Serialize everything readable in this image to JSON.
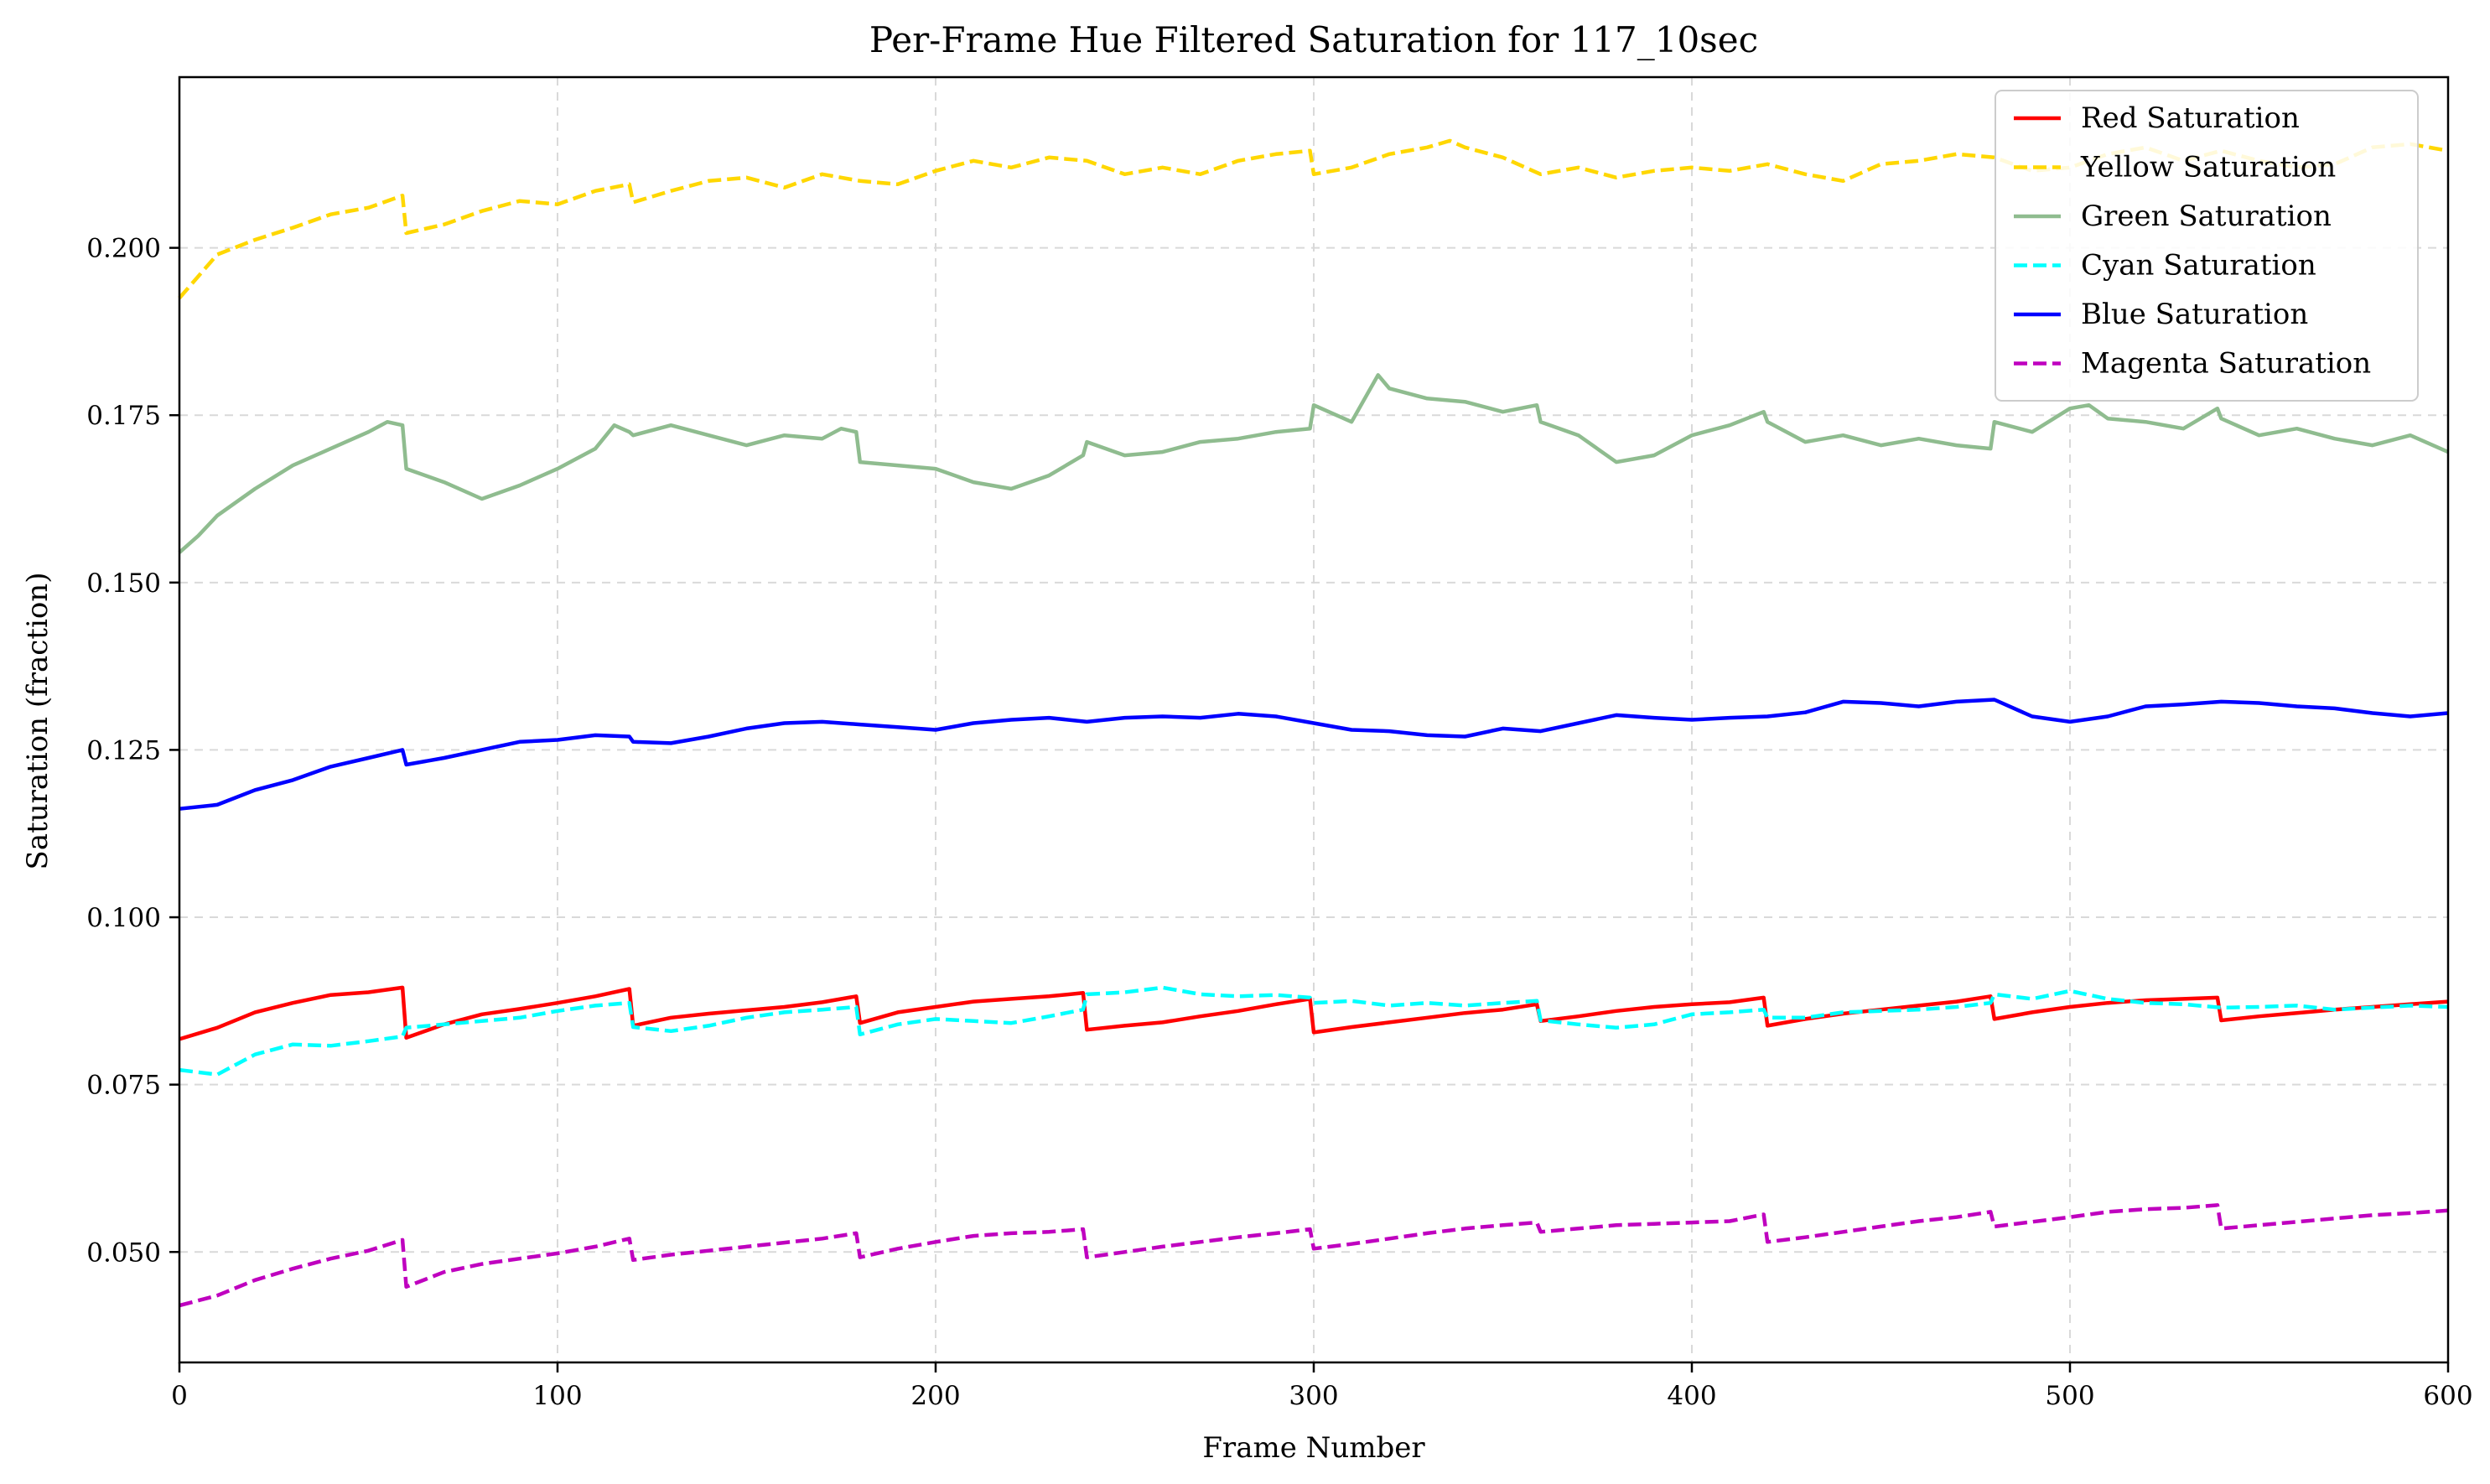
{
  "chart_data": {
    "type": "line",
    "title": "Per-Frame Hue Filtered Saturation for 117_10sec",
    "xlabel": "Frame Number",
    "ylabel": "Saturation (fraction)",
    "xlim": [
      0,
      600
    ],
    "ylim": [
      0.0335,
      0.2255
    ],
    "xticks": [
      0,
      100,
      200,
      300,
      400,
      500,
      600
    ],
    "xtick_labels": [
      "0",
      "100",
      "200",
      "300",
      "400",
      "500",
      "600"
    ],
    "yticks": [
      0.05,
      0.075,
      0.1,
      0.125,
      0.15,
      0.175,
      0.2
    ],
    "ytick_labels": [
      "0.050",
      "0.075",
      "0.100",
      "0.125",
      "0.150",
      "0.175",
      "0.200"
    ],
    "grid": true,
    "legend_position": "top-right",
    "series": [
      {
        "name": "Red Saturation",
        "color": "#ff0000",
        "style": "solid",
        "x": [
          0,
          10,
          20,
          30,
          40,
          50,
          59,
          60,
          70,
          80,
          90,
          100,
          110,
          119,
          120,
          130,
          140,
          150,
          160,
          170,
          179,
          180,
          190,
          200,
          210,
          220,
          230,
          239,
          240,
          250,
          260,
          270,
          280,
          290,
          299,
          300,
          310,
          320,
          330,
          340,
          350,
          359,
          360,
          370,
          380,
          390,
          400,
          410,
          419,
          420,
          430,
          440,
          450,
          460,
          470,
          479,
          480,
          490,
          500,
          510,
          520,
          530,
          539,
          540,
          550,
          560,
          570,
          580,
          590,
          600
        ],
        "y": [
          0.0818,
          0.0835,
          0.0858,
          0.0872,
          0.0884,
          0.0888,
          0.0895,
          0.082,
          0.084,
          0.0855,
          0.0863,
          0.0872,
          0.0882,
          0.0893,
          0.0838,
          0.085,
          0.0856,
          0.0861,
          0.0866,
          0.0873,
          0.0882,
          0.0842,
          0.0858,
          0.0866,
          0.0874,
          0.0878,
          0.0882,
          0.0887,
          0.0832,
          0.0838,
          0.0843,
          0.0852,
          0.086,
          0.087,
          0.0878,
          0.0828,
          0.0836,
          0.0843,
          0.085,
          0.0857,
          0.0862,
          0.087,
          0.0845,
          0.0852,
          0.086,
          0.0866,
          0.087,
          0.0873,
          0.088,
          0.0838,
          0.0848,
          0.0856,
          0.0862,
          0.0868,
          0.0874,
          0.0882,
          0.0848,
          0.0858,
          0.0866,
          0.0872,
          0.0876,
          0.0878,
          0.088,
          0.0846,
          0.0852,
          0.0857,
          0.0862,
          0.0866,
          0.087,
          0.0874
        ]
      },
      {
        "name": "Yellow Saturation",
        "color": "#ffd700",
        "style": "dashed",
        "x": [
          0,
          10,
          20,
          30,
          40,
          50,
          59,
          60,
          70,
          80,
          90,
          100,
          110,
          119,
          120,
          130,
          140,
          150,
          160,
          170,
          180,
          190,
          200,
          210,
          220,
          230,
          240,
          250,
          260,
          270,
          280,
          290,
          299,
          300,
          310,
          320,
          330,
          336,
          340,
          350,
          360,
          370,
          380,
          390,
          400,
          410,
          420,
          430,
          440,
          450,
          460,
          470,
          480,
          490,
          500,
          510,
          520,
          530,
          540,
          550,
          560,
          570,
          580,
          590,
          600
        ],
        "y": [
          0.1925,
          0.199,
          0.2012,
          0.203,
          0.205,
          0.206,
          0.2078,
          0.2022,
          0.2035,
          0.2055,
          0.207,
          0.2065,
          0.2085,
          0.2095,
          0.2068,
          0.2085,
          0.21,
          0.2105,
          0.209,
          0.211,
          0.21,
          0.2095,
          0.2115,
          0.213,
          0.212,
          0.2135,
          0.213,
          0.211,
          0.212,
          0.211,
          0.213,
          0.214,
          0.2145,
          0.211,
          0.212,
          0.214,
          0.215,
          0.216,
          0.215,
          0.2135,
          0.211,
          0.212,
          0.2105,
          0.2115,
          0.212,
          0.2115,
          0.2125,
          0.211,
          0.21,
          0.2125,
          0.213,
          0.214,
          0.2135,
          0.2115,
          0.212,
          0.214,
          0.215,
          0.213,
          0.2145,
          0.213,
          0.212,
          0.2125,
          0.215,
          0.2155,
          0.2145
        ]
      },
      {
        "name": "Green Saturation",
        "color": "#8fbc8f",
        "style": "solid",
        "x": [
          0,
          5,
          10,
          20,
          30,
          40,
          50,
          55,
          59,
          60,
          70,
          80,
          90,
          100,
          110,
          115,
          119,
          120,
          130,
          140,
          150,
          160,
          170,
          175,
          179,
          180,
          190,
          200,
          210,
          220,
          230,
          239,
          240,
          250,
          260,
          270,
          280,
          290,
          299,
          300,
          310,
          317,
          320,
          330,
          340,
          350,
          359,
          360,
          370,
          380,
          390,
          400,
          410,
          419,
          420,
          430,
          440,
          450,
          460,
          470,
          479,
          480,
          490,
          500,
          505,
          510,
          520,
          530,
          539,
          540,
          550,
          560,
          570,
          580,
          590,
          600
        ],
        "y": [
          0.1545,
          0.157,
          0.16,
          0.164,
          0.1675,
          0.17,
          0.1725,
          0.174,
          0.1735,
          0.167,
          0.165,
          0.1625,
          0.1645,
          0.167,
          0.17,
          0.1735,
          0.1725,
          0.172,
          0.1735,
          0.172,
          0.1705,
          0.172,
          0.1715,
          0.173,
          0.1725,
          0.168,
          0.1675,
          0.167,
          0.165,
          0.164,
          0.166,
          0.169,
          0.171,
          0.169,
          0.1695,
          0.171,
          0.1715,
          0.1725,
          0.173,
          0.1765,
          0.174,
          0.181,
          0.179,
          0.1775,
          0.177,
          0.1755,
          0.1765,
          0.174,
          0.172,
          0.168,
          0.169,
          0.172,
          0.1735,
          0.1755,
          0.174,
          0.171,
          0.172,
          0.1705,
          0.1715,
          0.1705,
          0.17,
          0.174,
          0.1725,
          0.176,
          0.1765,
          0.1745,
          0.174,
          0.173,
          0.176,
          0.1745,
          0.172,
          0.173,
          0.1715,
          0.1705,
          0.172,
          0.1695
        ]
      },
      {
        "name": "Cyan Saturation",
        "color": "#00ffff",
        "style": "dashed",
        "x": [
          0,
          10,
          20,
          30,
          40,
          50,
          59,
          60,
          70,
          80,
          90,
          100,
          110,
          119,
          120,
          130,
          140,
          150,
          160,
          170,
          179,
          180,
          190,
          200,
          210,
          220,
          230,
          239,
          240,
          250,
          260,
          270,
          280,
          290,
          299,
          300,
          310,
          320,
          330,
          340,
          350,
          359,
          360,
          370,
          380,
          390,
          400,
          410,
          419,
          420,
          430,
          440,
          450,
          460,
          470,
          479,
          480,
          490,
          500,
          510,
          520,
          530,
          540,
          550,
          560,
          570,
          580,
          590,
          600
        ],
        "y": [
          0.0772,
          0.0765,
          0.0795,
          0.081,
          0.0808,
          0.0815,
          0.0822,
          0.0835,
          0.084,
          0.0845,
          0.085,
          0.086,
          0.0868,
          0.0872,
          0.0836,
          0.083,
          0.0838,
          0.085,
          0.0858,
          0.0862,
          0.0866,
          0.0825,
          0.084,
          0.0848,
          0.0845,
          0.0842,
          0.0852,
          0.0862,
          0.0885,
          0.0888,
          0.0895,
          0.0885,
          0.0882,
          0.0884,
          0.088,
          0.0872,
          0.0875,
          0.0868,
          0.0872,
          0.0868,
          0.0872,
          0.0875,
          0.0846,
          0.084,
          0.0835,
          0.084,
          0.0855,
          0.0858,
          0.0862,
          0.085,
          0.085,
          0.0858,
          0.086,
          0.0862,
          0.0866,
          0.0872,
          0.0885,
          0.0878,
          0.089,
          0.0878,
          0.0872,
          0.087,
          0.0865,
          0.0866,
          0.0868,
          0.0862,
          0.0865,
          0.0868,
          0.0866
        ]
      },
      {
        "name": "Blue Saturation",
        "color": "#0000ff",
        "style": "solid",
        "x": [
          0,
          10,
          20,
          30,
          40,
          50,
          59,
          60,
          70,
          80,
          90,
          100,
          110,
          119,
          120,
          130,
          140,
          150,
          160,
          170,
          180,
          190,
          200,
          210,
          220,
          230,
          240,
          250,
          260,
          270,
          280,
          290,
          300,
          310,
          320,
          330,
          340,
          350,
          360,
          370,
          380,
          390,
          400,
          410,
          420,
          430,
          440,
          450,
          460,
          470,
          480,
          490,
          500,
          510,
          520,
          530,
          540,
          550,
          560,
          570,
          580,
          590,
          600
        ],
        "y": [
          0.1162,
          0.1168,
          0.119,
          0.1205,
          0.1225,
          0.1238,
          0.125,
          0.1228,
          0.1238,
          0.125,
          0.1262,
          0.1265,
          0.1272,
          0.127,
          0.1262,
          0.126,
          0.127,
          0.1282,
          0.129,
          0.1292,
          0.1288,
          0.1284,
          0.128,
          0.129,
          0.1295,
          0.1298,
          0.1292,
          0.1298,
          0.13,
          0.1298,
          0.1304,
          0.13,
          0.129,
          0.128,
          0.1278,
          0.1272,
          0.127,
          0.1282,
          0.1278,
          0.129,
          0.1302,
          0.1298,
          0.1295,
          0.1298,
          0.13,
          0.1306,
          0.1322,
          0.132,
          0.1315,
          0.1322,
          0.1325,
          0.13,
          0.1292,
          0.13,
          0.1315,
          0.1318,
          0.1322,
          0.132,
          0.1315,
          0.1312,
          0.1305,
          0.13,
          0.1305
        ]
      },
      {
        "name": "Magenta Saturation",
        "color": "#bf00bf",
        "style": "dashed",
        "x": [
          0,
          10,
          20,
          30,
          40,
          50,
          59,
          60,
          70,
          80,
          90,
          100,
          110,
          119,
          120,
          130,
          140,
          150,
          160,
          170,
          179,
          180,
          190,
          200,
          210,
          220,
          230,
          239,
          240,
          250,
          260,
          270,
          280,
          290,
          299,
          300,
          310,
          320,
          330,
          340,
          350,
          359,
          360,
          370,
          380,
          390,
          400,
          410,
          419,
          420,
          430,
          440,
          450,
          460,
          470,
          479,
          480,
          490,
          500,
          510,
          520,
          530,
          539,
          540,
          550,
          560,
          570,
          580,
          590,
          600
        ],
        "y": [
          0.042,
          0.0435,
          0.0458,
          0.0475,
          0.049,
          0.0502,
          0.0518,
          0.0448,
          0.047,
          0.0482,
          0.049,
          0.0498,
          0.0508,
          0.052,
          0.0488,
          0.0496,
          0.0502,
          0.0508,
          0.0514,
          0.052,
          0.0528,
          0.0492,
          0.0505,
          0.0515,
          0.0524,
          0.0528,
          0.053,
          0.0534,
          0.0492,
          0.05,
          0.0508,
          0.0515,
          0.0522,
          0.0528,
          0.0534,
          0.0505,
          0.0512,
          0.052,
          0.0528,
          0.0535,
          0.054,
          0.0544,
          0.053,
          0.0535,
          0.054,
          0.0542,
          0.0544,
          0.0546,
          0.0556,
          0.0515,
          0.0522,
          0.053,
          0.0538,
          0.0546,
          0.0552,
          0.056,
          0.0538,
          0.0545,
          0.0552,
          0.056,
          0.0564,
          0.0566,
          0.057,
          0.0535,
          0.054,
          0.0545,
          0.055,
          0.0555,
          0.0558,
          0.0562
        ]
      }
    ]
  }
}
